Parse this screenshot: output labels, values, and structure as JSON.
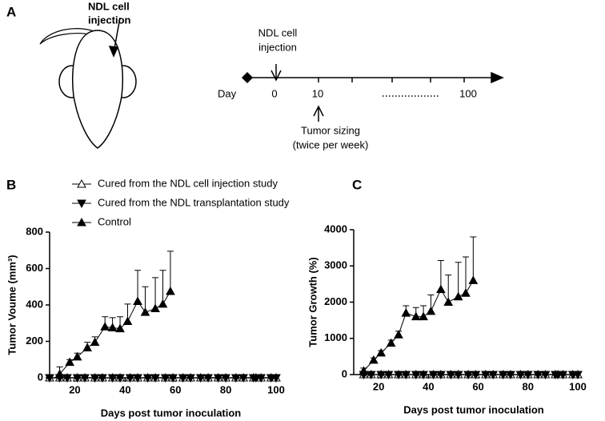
{
  "panel_a": {
    "label": "A",
    "mouse_label": [
      "NDL cell",
      "injection"
    ],
    "injection_label": [
      "NDL cell",
      "injection"
    ],
    "day_label": "Day",
    "day_ticks": [
      "0",
      "10",
      "100"
    ],
    "sizing_label": [
      "Tumor sizing",
      "(twice per week)"
    ]
  },
  "chart_data": [
    {
      "type": "line",
      "panel_label": "B",
      "ylabel": "Tumor Voume (mm³)",
      "xlabel": "Days post tumor inoculation",
      "xlim": [
        10,
        100
      ],
      "xticks": [
        20,
        40,
        60,
        80,
        100
      ],
      "ylim": [
        0,
        800
      ],
      "yticks": [
        0,
        200,
        400,
        600,
        800
      ],
      "legend": "top",
      "series": [
        {
          "name": "Cured from the NDL cell injection study",
          "color": "#000",
          "marker": "triangle-open",
          "x": [
            10,
            14,
            17,
            21,
            24,
            28,
            31,
            35,
            38,
            42,
            45,
            49,
            52,
            56,
            59,
            63,
            66,
            70,
            73,
            77,
            80,
            84,
            87,
            91,
            92,
            94,
            98,
            100
          ],
          "values": [
            0,
            0,
            0,
            0,
            0,
            0,
            0,
            0,
            0,
            0,
            0,
            0,
            0,
            0,
            0,
            0,
            0,
            0,
            0,
            0,
            0,
            0,
            0,
            0,
            0,
            0,
            0,
            0
          ]
        },
        {
          "name": "Cured from the NDL transplantation study",
          "color": "#000",
          "marker": "triangle-down",
          "x": [
            10,
            14,
            17,
            21,
            24,
            28,
            31,
            35,
            38,
            42,
            45,
            49,
            52,
            56,
            59,
            63,
            66,
            70,
            73,
            77,
            80,
            84,
            87,
            91,
            92,
            94,
            98,
            100
          ],
          "values": [
            0,
            0,
            0,
            0,
            0,
            0,
            0,
            0,
            0,
            0,
            0,
            0,
            0,
            0,
            0,
            0,
            0,
            0,
            0,
            0,
            0,
            0,
            0,
            0,
            0,
            0,
            0,
            0
          ]
        },
        {
          "name": "Control",
          "color": "#000",
          "marker": "triangle",
          "connect": true,
          "x": [
            14,
            18,
            21,
            25,
            28,
            32,
            35,
            38,
            41,
            45,
            48,
            52,
            55,
            58
          ],
          "values": [
            20,
            85,
            115,
            165,
            195,
            280,
            275,
            270,
            310,
            420,
            360,
            380,
            405,
            475
          ],
          "errors": [
            40,
            15,
            20,
            30,
            30,
            55,
            55,
            65,
            95,
            170,
            140,
            170,
            185,
            220
          ]
        }
      ]
    },
    {
      "type": "line",
      "panel_label": "C",
      "ylabel": "Tumor Growth (%)",
      "xlabel": "Days post tumor inoculation",
      "xlim": [
        10,
        100
      ],
      "xticks": [
        20,
        40,
        60,
        80,
        100
      ],
      "ylim": [
        0,
        4000
      ],
      "yticks": [
        0,
        1000,
        2000,
        3000,
        4000
      ],
      "series": [
        {
          "color": "#000",
          "marker": "triangle-open",
          "x": [
            14,
            17,
            21,
            24,
            28,
            31,
            35,
            38,
            42,
            45,
            49,
            52,
            56,
            59,
            63,
            66,
            70,
            73,
            77,
            80,
            84,
            87,
            91,
            92,
            94,
            98,
            100
          ],
          "values": [
            0,
            0,
            0,
            0,
            0,
            0,
            0,
            0,
            0,
            0,
            0,
            0,
            0,
            0,
            0,
            0,
            0,
            0,
            0,
            0,
            0,
            0,
            0,
            0,
            0,
            0,
            0
          ]
        },
        {
          "color": "#000",
          "marker": "triangle-down",
          "x": [
            14,
            17,
            21,
            24,
            28,
            31,
            35,
            38,
            42,
            45,
            49,
            52,
            56,
            59,
            63,
            66,
            70,
            73,
            77,
            80,
            84,
            87,
            91,
            92,
            94,
            98,
            100
          ],
          "values": [
            0,
            0,
            0,
            0,
            0,
            0,
            0,
            0,
            0,
            0,
            0,
            0,
            0,
            0,
            0,
            0,
            0,
            0,
            0,
            0,
            0,
            0,
            0,
            0,
            0,
            0,
            0
          ]
        },
        {
          "color": "#000",
          "marker": "triangle",
          "connect": true,
          "x": [
            14,
            18,
            21,
            25,
            28,
            31,
            35,
            38,
            41,
            45,
            48,
            52,
            55,
            58
          ],
          "values": [
            100,
            400,
            600,
            870,
            1100,
            1700,
            1600,
            1600,
            1750,
            2350,
            2000,
            2150,
            2250,
            2600
          ],
          "errors": [
            80,
            60,
            60,
            80,
            100,
            200,
            250,
            300,
            450,
            800,
            750,
            950,
            1000,
            1200
          ]
        }
      ]
    }
  ]
}
